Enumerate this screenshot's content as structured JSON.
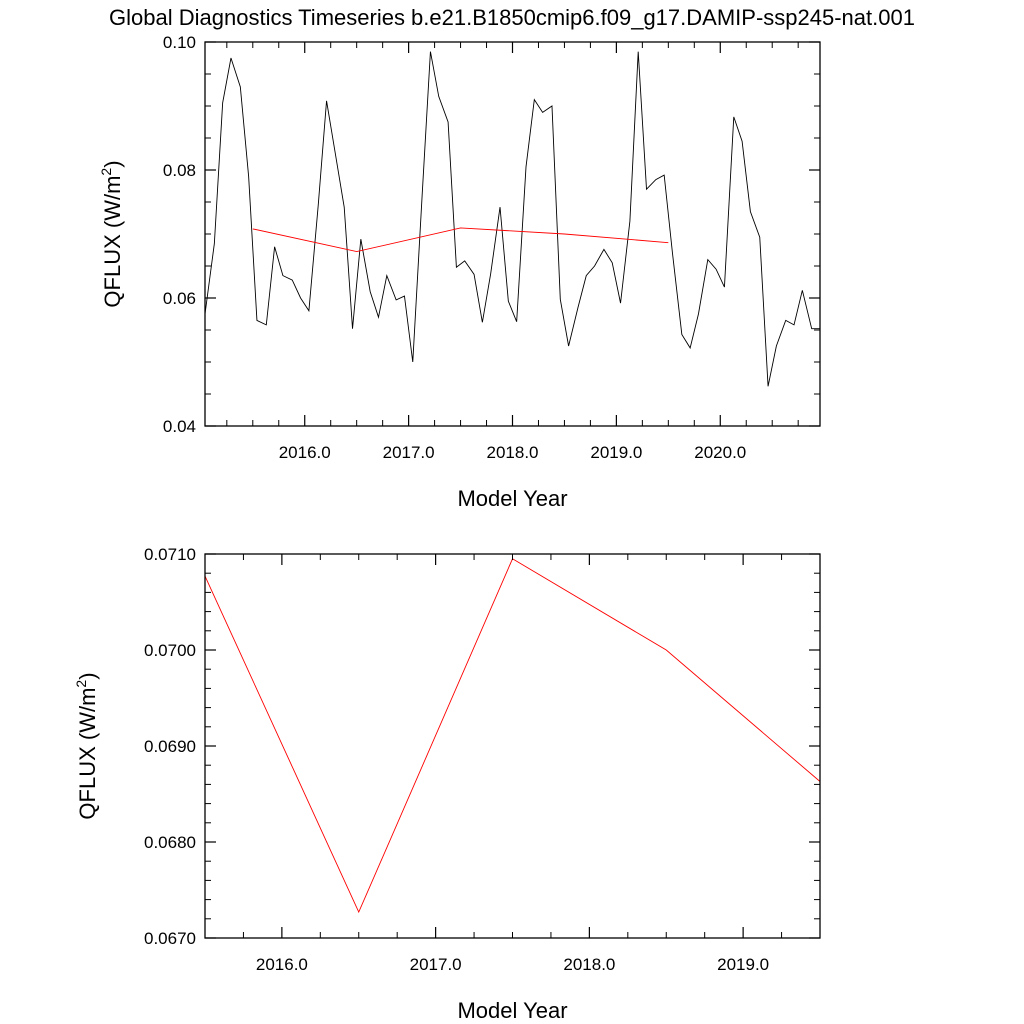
{
  "chart_data": [
    {
      "type": "line",
      "title": "Global Diagnostics Timeseries b.e21.B1850cmip6.f09_g17.DAMIP-ssp245-nat.001",
      "xlabel": "Model Year",
      "ylabel": "QFLUX (W/m",
      "ylabel_sup": "2",
      "ylabel_close": ")",
      "xlim": [
        2015.04,
        2020.96
      ],
      "ylim": [
        0.04,
        0.1
      ],
      "x_ticks": [
        2016,
        2017,
        2018,
        2019,
        2020
      ],
      "x_tick_labels": [
        "2016.0",
        "2017.0",
        "2018.0",
        "2019.0",
        "2020.0"
      ],
      "y_ticks": [
        0.04,
        0.06,
        0.08,
        0.1
      ],
      "y_tick_labels": [
        "0.04",
        "0.06",
        "0.08",
        "0.10"
      ],
      "series": [
        {
          "color": "#000000",
          "x": [
            2015.04,
            2015.13,
            2015.21,
            2015.29,
            2015.38,
            2015.46,
            2015.54,
            2015.63,
            2015.71,
            2015.79,
            2015.88,
            2015.96,
            2016.04,
            2016.13,
            2016.21,
            2016.29,
            2016.38,
            2016.46,
            2016.54,
            2016.63,
            2016.71,
            2016.79,
            2016.88,
            2016.96,
            2017.04,
            2017.13,
            2017.21,
            2017.29,
            2017.38,
            2017.46,
            2017.54,
            2017.63,
            2017.71,
            2017.79,
            2017.88,
            2017.96,
            2018.04,
            2018.13,
            2018.21,
            2018.29,
            2018.38,
            2018.46,
            2018.54,
            2018.63,
            2018.71,
            2018.79,
            2018.88,
            2018.96,
            2019.04,
            2019.13,
            2019.21,
            2019.29,
            2019.38,
            2019.46,
            2019.54,
            2019.63,
            2019.71,
            2019.79,
            2019.88,
            2019.96,
            2020.04,
            2020.13,
            2020.21,
            2020.29,
            2020.38,
            2020.46,
            2020.54,
            2020.63,
            2020.71,
            2020.79,
            2020.88,
            2020.96
          ],
          "y": [
            0.0575,
            0.0685,
            0.0905,
            0.0975,
            0.093,
            0.079,
            0.0565,
            0.0558,
            0.068,
            0.0635,
            0.0628,
            0.06,
            0.058,
            0.0745,
            0.0908,
            0.083,
            0.0742,
            0.0552,
            0.0692,
            0.061,
            0.057,
            0.0635,
            0.0597,
            0.0603,
            0.05,
            0.076,
            0.0985,
            0.0915,
            0.0875,
            0.0648,
            0.0658,
            0.0637,
            0.0562,
            0.0638,
            0.0742,
            0.0595,
            0.0563,
            0.0805,
            0.091,
            0.089,
            0.09,
            0.0598,
            0.0525,
            0.0585,
            0.0635,
            0.065,
            0.0676,
            0.0655,
            0.0592,
            0.072,
            0.0985,
            0.077,
            0.0785,
            0.0792,
            0.067,
            0.0543,
            0.0522,
            0.0575,
            0.066,
            0.0645,
            0.0617,
            0.0883,
            0.0845,
            0.0735,
            0.0695,
            0.0462,
            0.0525,
            0.0565,
            0.0558,
            0.0612,
            0.0552,
            0.0552
          ]
        },
        {
          "color": "#ff0000",
          "x": [
            2015.5,
            2016.5,
            2017.5,
            2018.5,
            2019.5
          ],
          "y": [
            0.0708,
            0.06725,
            0.07095,
            0.07,
            0.06865
          ]
        }
      ]
    },
    {
      "type": "line",
      "xlabel": "Model Year",
      "ylabel": "QFLUX (W/m",
      "ylabel_sup": "2",
      "ylabel_close": ")",
      "xlim": [
        2015.5,
        2019.5
      ],
      "ylim": [
        0.067,
        0.071
      ],
      "x_ticks": [
        2016,
        2017,
        2018,
        2019
      ],
      "x_tick_labels": [
        "2016.0",
        "2017.0",
        "2018.0",
        "2019.0"
      ],
      "y_ticks": [
        0.067,
        0.068,
        0.069,
        0.07,
        0.071
      ],
      "y_tick_labels": [
        "0.0670",
        "0.0680",
        "0.0690",
        "0.0700",
        "0.0710"
      ],
      "series": [
        {
          "color": "#ff0000",
          "x": [
            2015.5,
            2016.5,
            2017.5,
            2018.5,
            2019.5
          ],
          "y": [
            0.07077,
            0.06727,
            0.07095,
            0.07,
            0.06863
          ]
        }
      ]
    }
  ]
}
